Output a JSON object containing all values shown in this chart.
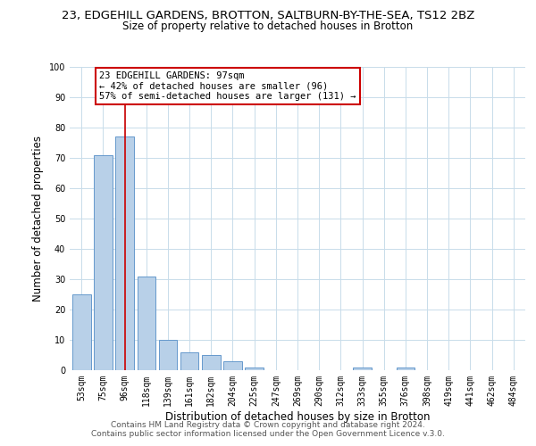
{
  "title_main": "23, EDGEHILL GARDENS, BROTTON, SALTBURN-BY-THE-SEA, TS12 2BZ",
  "title_sub": "Size of property relative to detached houses in Brotton",
  "xlabel": "Distribution of detached houses by size in Brotton",
  "ylabel": "Number of detached properties",
  "bar_labels": [
    "53sqm",
    "75sqm",
    "96sqm",
    "118sqm",
    "139sqm",
    "161sqm",
    "182sqm",
    "204sqm",
    "225sqm",
    "247sqm",
    "269sqm",
    "290sqm",
    "312sqm",
    "333sqm",
    "355sqm",
    "376sqm",
    "398sqm",
    "419sqm",
    "441sqm",
    "462sqm",
    "484sqm"
  ],
  "bar_values": [
    25,
    71,
    77,
    31,
    10,
    6,
    5,
    3,
    1,
    0,
    0,
    0,
    0,
    1,
    0,
    1,
    0,
    0,
    0,
    0,
    0
  ],
  "bar_color": "#b8d0e8",
  "bar_edge_color": "#6699cc",
  "vline_x_index": 2,
  "vline_color": "#cc0000",
  "ylim": [
    0,
    100
  ],
  "yticks": [
    0,
    10,
    20,
    30,
    40,
    50,
    60,
    70,
    80,
    90,
    100
  ],
  "annotation_title": "23 EDGEHILL GARDENS: 97sqm",
  "annotation_line1": "← 42% of detached houses are smaller (96)",
  "annotation_line2": "57% of semi-detached houses are larger (131) →",
  "annotation_box_color": "#ffffff",
  "annotation_box_edge": "#cc0000",
  "footer1": "Contains HM Land Registry data © Crown copyright and database right 2024.",
  "footer2": "Contains public sector information licensed under the Open Government Licence v.3.0.",
  "bg_color": "#ffffff",
  "grid_color": "#c8dcea",
  "title_fontsize": 9.5,
  "subtitle_fontsize": 8.5,
  "axis_label_fontsize": 8.5,
  "tick_fontsize": 7,
  "annotation_fontsize": 7.5,
  "footer_fontsize": 6.5
}
